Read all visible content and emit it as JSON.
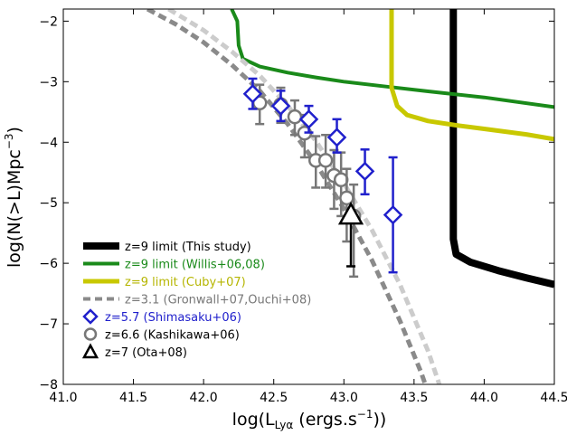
{
  "chart_data": {
    "type": "line",
    "xlabel": "log(L",
    "xlabel_sub": "Lyα",
    "xlabel_tail": " (ergs.s",
    "xlabel_sup": "−1",
    "xlabel_end": "))",
    "ylabel": "log(N(>L)Mpc",
    "ylabel_sup": "−3",
    "ylabel_end": ")",
    "xlim": [
      41.0,
      44.5
    ],
    "ylim": [
      -8,
      -1.8
    ],
    "xticks": [
      41.0,
      41.5,
      42.0,
      42.5,
      43.0,
      43.5,
      44.0,
      44.5
    ],
    "xtick_labels": [
      "41.0",
      "41.5",
      "42.0",
      "42.5",
      "43.0",
      "43.5",
      "44.0",
      "44.5"
    ],
    "yticks": [
      -8,
      -7,
      -6,
      -5,
      -4,
      -3,
      -2
    ],
    "ytick_labels": [
      "−8",
      "−7",
      "−6",
      "−5",
      "−4",
      "−3",
      "−2"
    ],
    "legend_position": "lower-left",
    "grid": false,
    "colors": {
      "black": "#000000",
      "green": "#1a8a1a",
      "yellow": "#c8c800",
      "gray": "#8a8a8a",
      "lightgray": "#cccccc",
      "blue": "#2020cc",
      "marker_gray": "#777777"
    },
    "series": [
      {
        "name": "z=9 limit (This study)",
        "kind": "line",
        "color": "black",
        "width": 8,
        "points": [
          [
            43.78,
            -1.8
          ],
          [
            43.78,
            -5.6
          ],
          [
            43.8,
            -5.85
          ],
          [
            43.9,
            -5.98
          ],
          [
            44.1,
            -6.12
          ],
          [
            44.3,
            -6.24
          ],
          [
            44.5,
            -6.35
          ]
        ]
      },
      {
        "name": "z=9 limit (Willis+06,08)",
        "kind": "line",
        "color": "green",
        "width": 4,
        "points": [
          [
            42.2,
            -1.8
          ],
          [
            42.24,
            -2.0
          ],
          [
            42.25,
            -2.4
          ],
          [
            42.28,
            -2.62
          ],
          [
            42.4,
            -2.75
          ],
          [
            42.6,
            -2.85
          ],
          [
            42.8,
            -2.93
          ],
          [
            43.0,
            -3.0
          ],
          [
            43.3,
            -3.08
          ],
          [
            43.6,
            -3.16
          ],
          [
            44.0,
            -3.26
          ],
          [
            44.5,
            -3.42
          ]
        ]
      },
      {
        "name": "z=9 limit (Cuby+07)",
        "kind": "line",
        "color": "yellow",
        "width": 5,
        "points": [
          [
            43.34,
            -1.8
          ],
          [
            43.34,
            -3.1
          ],
          [
            43.38,
            -3.4
          ],
          [
            43.45,
            -3.55
          ],
          [
            43.6,
            -3.65
          ],
          [
            43.8,
            -3.72
          ],
          [
            44.0,
            -3.78
          ],
          [
            44.3,
            -3.87
          ],
          [
            44.5,
            -3.95
          ]
        ]
      },
      {
        "name": "z=3.1 (Gronwall+07,Ouchi+08)",
        "kind": "dashed-band",
        "color": "gray",
        "width": 5,
        "curves": [
          {
            "color": "gray",
            "points": [
              [
                41.6,
                -1.8
              ],
              [
                41.8,
                -2.05
              ],
              [
                42.0,
                -2.35
              ],
              [
                42.2,
                -2.72
              ],
              [
                42.4,
                -3.15
              ],
              [
                42.6,
                -3.7
              ],
              [
                42.8,
                -4.35
              ],
              [
                43.0,
                -5.1
              ],
              [
                43.2,
                -5.95
              ],
              [
                43.4,
                -6.95
              ],
              [
                43.55,
                -7.8
              ],
              [
                43.58,
                -8.0
              ]
            ]
          },
          {
            "color": "lightgray",
            "points": [
              [
                41.75,
                -1.8
              ],
              [
                42.0,
                -2.15
              ],
              [
                42.2,
                -2.5
              ],
              [
                42.4,
                -2.9
              ],
              [
                42.6,
                -3.4
              ],
              [
                42.8,
                -3.98
              ],
              [
                43.0,
                -4.68
              ],
              [
                43.2,
                -5.45
              ],
              [
                43.4,
                -6.35
              ],
              [
                43.6,
                -7.45
              ],
              [
                43.68,
                -8.0
              ]
            ]
          }
        ]
      },
      {
        "name": "z=5.7 (Shimasaku+06)",
        "kind": "diamond",
        "color": "blue",
        "points": [
          {
            "x": 42.35,
            "y": -3.2,
            "yerr_lo": 0.25,
            "yerr_hi": 0.25
          },
          {
            "x": 42.55,
            "y": -3.4,
            "yerr_lo": 0.25,
            "yerr_hi": 0.25
          },
          {
            "x": 42.75,
            "y": -3.62,
            "yerr_lo": 0.22,
            "yerr_hi": 0.22
          },
          {
            "x": 42.95,
            "y": -3.92,
            "yerr_lo": 0.25,
            "yerr_hi": 0.3
          },
          {
            "x": 43.15,
            "y": -4.48,
            "yerr_lo": 0.38,
            "yerr_hi": 0.36
          },
          {
            "x": 43.35,
            "y": -5.2,
            "yerr_lo": 0.95,
            "yerr_hi": 0.95
          }
        ]
      },
      {
        "name": "z=6.6 (Kashikawa+06)",
        "kind": "circle",
        "color": "marker_gray",
        "points": [
          {
            "x": 42.4,
            "y": -3.35,
            "yerr_lo": 0.35,
            "yerr_hi": 0.3
          },
          {
            "x": 42.55,
            "y": -3.38,
            "yerr_lo": 0.3,
            "yerr_hi": 0.28
          },
          {
            "x": 42.65,
            "y": -3.58,
            "yerr_lo": 0.3,
            "yerr_hi": 0.27
          },
          {
            "x": 42.72,
            "y": -3.85,
            "yerr_lo": 0.4,
            "yerr_hi": 0.3
          },
          {
            "x": 42.8,
            "y": -4.3,
            "yerr_lo": 0.45,
            "yerr_hi": 0.4
          },
          {
            "x": 42.87,
            "y": -4.3,
            "yerr_lo": 0.45,
            "yerr_hi": 0.42
          },
          {
            "x": 42.93,
            "y": -4.55,
            "yerr_lo": 0.55,
            "yerr_hi": 0.42
          },
          {
            "x": 42.98,
            "y": -4.62,
            "yerr_lo": 0.6,
            "yerr_hi": 0.45
          },
          {
            "x": 43.02,
            "y": -4.92,
            "yerr_lo": 0.72,
            "yerr_hi": 0.48
          },
          {
            "x": 43.07,
            "y": -5.22,
            "yerr_lo": 1.0,
            "yerr_hi": 0.52
          }
        ]
      },
      {
        "name": "z=7 (Ota+08)",
        "kind": "triangle",
        "color": "black",
        "points": [
          {
            "x": 43.05,
            "y": -5.2,
            "yerr_lo": 0.85,
            "yerr_hi": 0.0
          }
        ]
      }
    ]
  }
}
